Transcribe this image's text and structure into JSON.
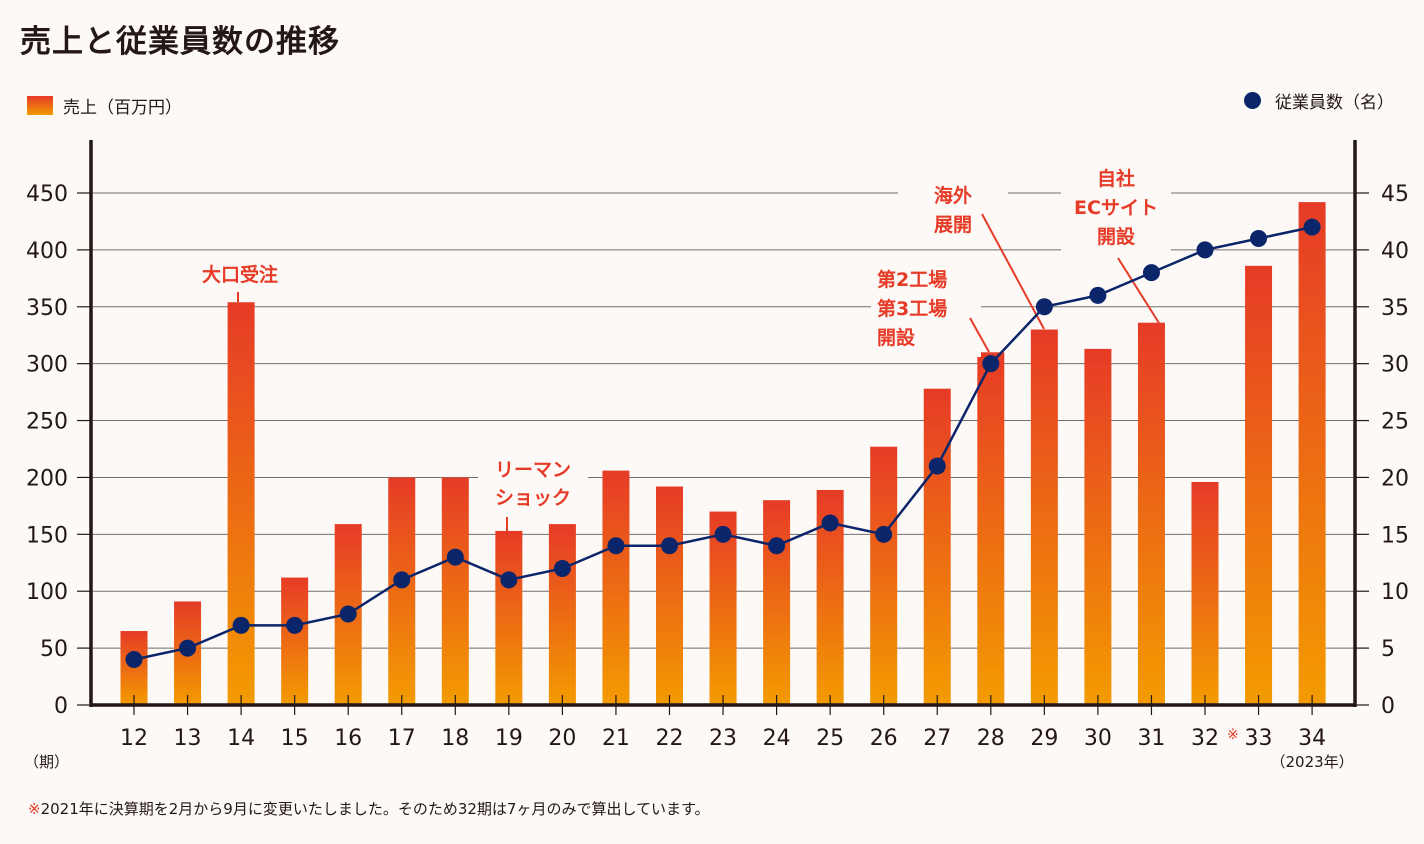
{
  "title": "売上と従業員数の推移",
  "legend": {
    "sales_label": "売上（百万円）",
    "employees_label": "従業員数（名）"
  },
  "colors": {
    "bar_top": "#e63b27",
    "bar_bottom": "#f39b00",
    "line": "#0b256b",
    "annotation": "#e63b27",
    "axis": "#231815",
    "grid": "#707070",
    "background": "#fdf9f6"
  },
  "footnote": {
    "mark": "※",
    "text": "2021年に決算期を2月から9月に変更いたしました。そのため32期は7ヶ月のみで算出しています。"
  },
  "chart_data": {
    "type": "bar",
    "title": "売上と従業員数の推移",
    "xlabel": "（期）",
    "categories": [
      "12",
      "13",
      "14",
      "15",
      "16",
      "17",
      "18",
      "19",
      "20",
      "21",
      "22",
      "23",
      "24",
      "25",
      "26",
      "27",
      "28",
      "29",
      "30",
      "31",
      "32",
      "33",
      "34"
    ],
    "category_marks": {
      "32": "※"
    },
    "last_category_note": "（2023年）",
    "series": [
      {
        "name": "売上（百万円）",
        "type": "bar",
        "axis": "left",
        "values": [
          65,
          91,
          354,
          112,
          159,
          200,
          200,
          153,
          159,
          206,
          192,
          170,
          180,
          189,
          227,
          278,
          310,
          330,
          313,
          336,
          196,
          386,
          442
        ]
      },
      {
        "name": "従業員数（名）",
        "type": "line",
        "axis": "right",
        "values": [
          4,
          5,
          7,
          7,
          8,
          11,
          13,
          11,
          12,
          14,
          14,
          15,
          14,
          16,
          15,
          21,
          30,
          35,
          36,
          38,
          40,
          41,
          42
        ]
      }
    ],
    "y_left": {
      "min": 0,
      "max": 450,
      "ticks": [
        0,
        50,
        100,
        150,
        200,
        250,
        300,
        350,
        400,
        450
      ]
    },
    "y_right": {
      "min": 0,
      "max": 45,
      "ticks": [
        0,
        5,
        10,
        15,
        20,
        25,
        30,
        35,
        40,
        45
      ]
    },
    "grid": true,
    "legend_placement": [
      "top-left",
      "top-right"
    ],
    "annotations": [
      {
        "category": "14",
        "lines": [
          "大口受注"
        ]
      },
      {
        "category": "19",
        "lines": [
          "リーマン",
          "ショック"
        ]
      },
      {
        "category": "28",
        "lines": [
          "第2工場",
          "第3工場",
          "開設"
        ]
      },
      {
        "category": "29",
        "lines": [
          "海外",
          "展開"
        ]
      },
      {
        "category": "31",
        "lines": [
          "自社",
          "ECサイト",
          "開設"
        ]
      }
    ]
  }
}
